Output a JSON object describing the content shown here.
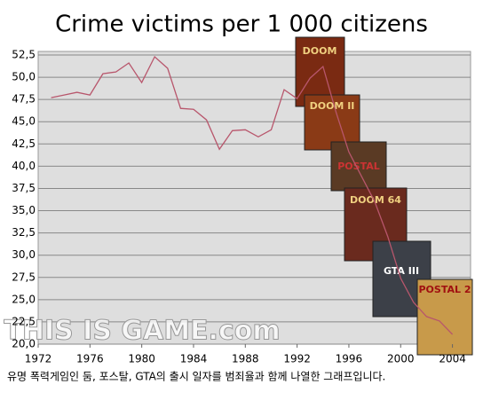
{
  "chart_data": {
    "type": "line",
    "title": "Crime victims per 1 000 citizens",
    "caption": "유명 폭력게임인 둠, 포스탈, GTA의 출시 일자를 범죄율과 함께 나열한 그래프입니다.",
    "watermark": "THIS IS GAME.com",
    "covers": [
      "DOOM",
      "DOOM II",
      "POSTAL",
      "DOOM 64",
      "GTA III",
      "POSTAL 2"
    ],
    "x": [
      1973,
      1974,
      1975,
      1976,
      1977,
      1978,
      1979,
      1980,
      1981,
      1982,
      1983,
      1984,
      1985,
      1986,
      1987,
      1988,
      1989,
      1990,
      1991,
      1992,
      1993,
      1994,
      1995,
      1996,
      1997,
      1998,
      1999,
      2000,
      2001,
      2002,
      2003,
      2004
    ],
    "series": [
      {
        "color": "#b8566c",
        "values": [
          47.7,
          48.0,
          48.3,
          48.0,
          50.4,
          50.6,
          51.6,
          49.4,
          52.3,
          51.0,
          46.5,
          46.4,
          45.2,
          41.9,
          44.0,
          44.1,
          43.3,
          44.1,
          48.6,
          47.6,
          49.9,
          51.2,
          46.1,
          41.6,
          38.8,
          36.0,
          32.1,
          27.4,
          24.7,
          23.1,
          22.6,
          21.1
        ]
      }
    ],
    "xlim": [
      1972,
      2005.4
    ],
    "xticks": [
      1972,
      1976,
      1980,
      1984,
      1988,
      1992,
      1996,
      2000,
      2004
    ],
    "ylim": [
      20,
      52.5
    ],
    "yticks": [
      {
        "value": 20,
        "label": "20,0"
      },
      {
        "value": 22.5,
        "label": "22,5"
      },
      {
        "value": 25,
        "label": "25,0"
      },
      {
        "value": 27.5,
        "label": "27,5"
      },
      {
        "value": 30,
        "label": "30,0"
      },
      {
        "value": 32.5,
        "label": "32,5"
      },
      {
        "value": 35,
        "label": "35,0"
      },
      {
        "value": 37.5,
        "label": "37,5"
      },
      {
        "value": 40,
        "label": "40,0"
      },
      {
        "value": 42.5,
        "label": "42,5"
      },
      {
        "value": 45,
        "label": "45,0"
      },
      {
        "value": 47.5,
        "label": "47,5"
      },
      {
        "value": 50,
        "label": "50,0"
      },
      {
        "value": 52.5,
        "label": "52,5"
      }
    ],
    "grid": true
  }
}
